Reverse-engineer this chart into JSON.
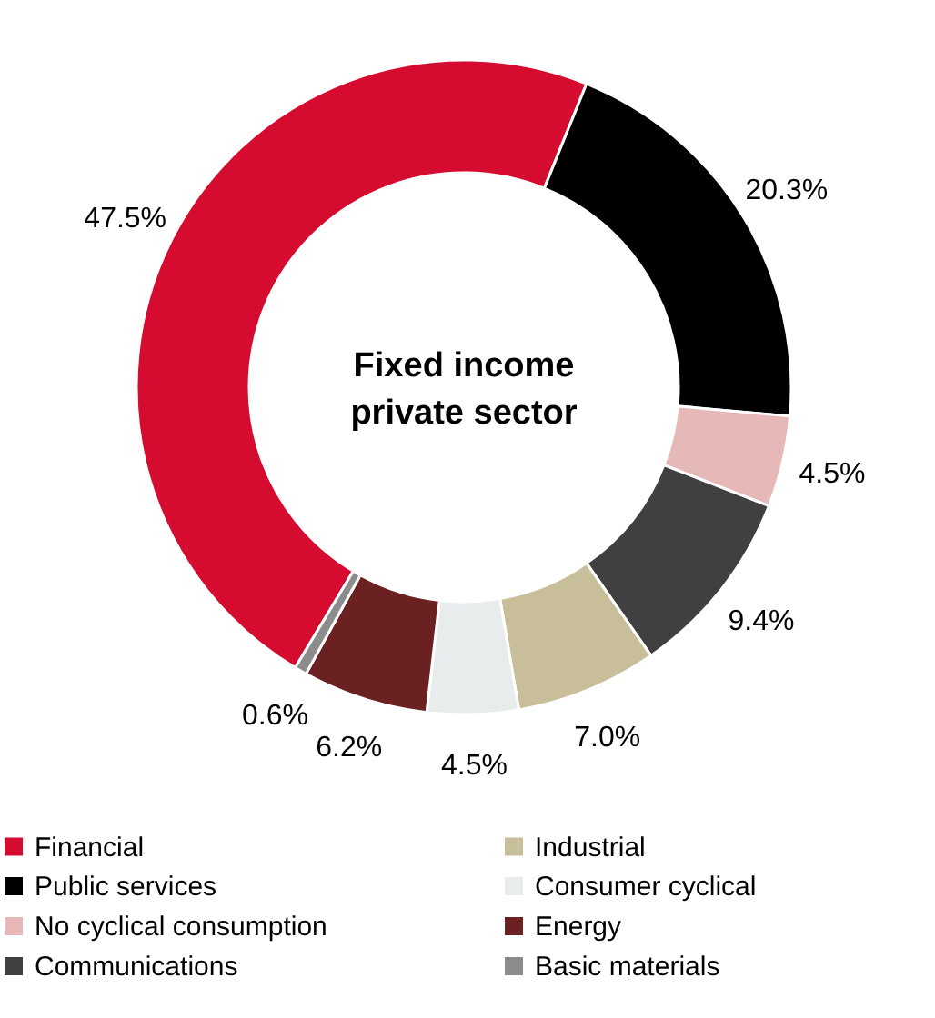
{
  "chart_data": {
    "type": "donut",
    "title": "Fixed income private sector",
    "categories": [
      "Financial",
      "Public services",
      "No cyclical consumption",
      "Communications",
      "Industrial",
      "Consumer cyclical",
      "Energy",
      "Basic materials"
    ],
    "values": [
      47.5,
      20.3,
      4.5,
      9.4,
      7.0,
      4.5,
      6.2,
      0.6
    ],
    "value_labels": [
      "47.5%",
      "20.3%",
      "4.5%",
      "9.4%",
      "7.0%",
      "4.5%",
      "6.2%",
      "0.6%"
    ],
    "colors": [
      "#d50c2f",
      "#000000",
      "#e6b8b7",
      "#404040",
      "#c8bf9a",
      "#e8ecec",
      "#6b2121",
      "#8c8c8c"
    ],
    "legend": "bottom"
  }
}
